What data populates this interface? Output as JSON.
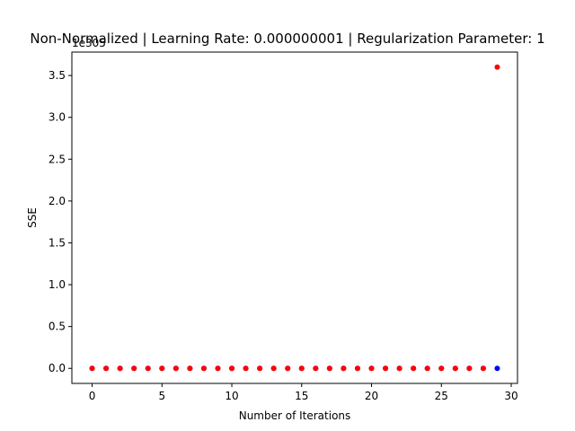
{
  "chart_data": {
    "type": "scatter",
    "title": "Non-Normalized | Learning Rate: 0.000000001 | Regularization Parameter: 1",
    "xlabel": "Number of Iterations",
    "ylabel": "SSE",
    "y_offset_text": "1e305",
    "xlim": [
      -1.45,
      30.45
    ],
    "ylim": [
      -0.18,
      3.78
    ],
    "x_ticks": [
      0,
      5,
      10,
      15,
      20,
      25,
      30
    ],
    "y_ticks": [
      0.0,
      0.5,
      1.0,
      1.5,
      2.0,
      2.5,
      3.0,
      3.5
    ],
    "y_tick_labels": [
      "0.0",
      "0.5",
      "1.0",
      "1.5",
      "2.0",
      "2.5",
      "3.0",
      "3.5"
    ],
    "grid": false,
    "series": [
      {
        "color": "#0000ff",
        "x": [
          0,
          1,
          2,
          3,
          4,
          5,
          6,
          7,
          8,
          9,
          10,
          11,
          12,
          13,
          14,
          15,
          16,
          17,
          18,
          19,
          20,
          21,
          22,
          23,
          24,
          25,
          26,
          27,
          28,
          29
        ],
        "y": [
          0,
          0,
          0,
          0,
          0,
          0,
          0,
          0,
          0,
          0,
          0,
          0,
          0,
          0,
          0,
          0,
          0,
          0,
          0,
          0,
          0,
          0,
          0,
          0,
          0,
          0,
          0,
          0,
          0,
          0
        ]
      },
      {
        "color": "#ff0000",
        "x": [
          0,
          1,
          2,
          3,
          4,
          5,
          6,
          7,
          8,
          9,
          10,
          11,
          12,
          13,
          14,
          15,
          16,
          17,
          18,
          19,
          20,
          21,
          22,
          23,
          24,
          25,
          26,
          27,
          28,
          29
        ],
        "y": [
          0,
          0,
          0,
          0,
          0,
          0,
          0,
          0,
          0,
          0,
          0,
          0,
          0,
          0,
          0,
          0,
          0,
          0,
          0,
          0,
          0,
          0,
          0,
          0,
          0,
          0,
          0,
          0,
          0,
          3.6
        ]
      }
    ]
  }
}
